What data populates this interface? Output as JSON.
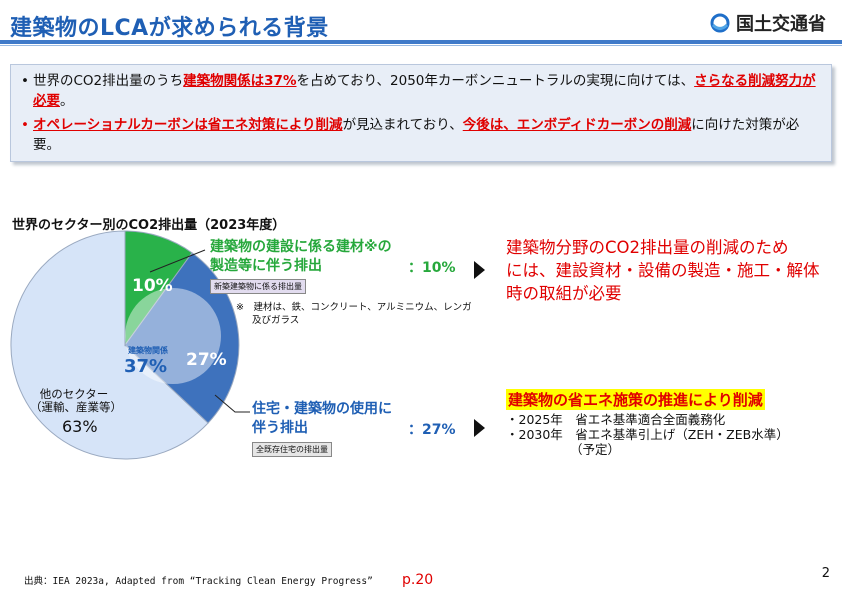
{
  "header": {
    "title": "建築物のLCAが求められる背景",
    "ministry": "国土交通省"
  },
  "summary": {
    "bullet": "•",
    "line1": {
      "a": "世界のCO2排出量のうち",
      "b": "建築物関係は37%",
      "c": "を占めており、2050年カーボンニュートラルの実現に向けては、",
      "d": "さらなる削減努力が必要",
      "e": "。"
    },
    "line2": {
      "a": "オペレーショナルカーボンは省エネ対策により削減",
      "b": "が見込まれており、",
      "c": "今後は、エンボディドカーボンの削減",
      "d": "に向けた対策が必要。"
    }
  },
  "chart_data": {
    "type": "pie",
    "title": "世界のセクター別のCO2排出量（2023年度）",
    "slices": [
      {
        "name": "建築物の建設に係る建材※の製造等に伴う排出",
        "value": 10,
        "label": "10%",
        "color": "#29b24a"
      },
      {
        "name": "住宅・建築物の使用に伴う排出",
        "value": 27,
        "label": "27%",
        "color": "#3e72bd"
      },
      {
        "name": "他のセクター（運輸、産業等）",
        "value": 63,
        "label": "63%",
        "color": "#d6e4f8"
      }
    ],
    "inner_label": {
      "text": "建築物関係",
      "value": "37%"
    }
  },
  "callouts": {
    "materials": {
      "line1": "建築物の建設に係る建材※の",
      "line2": "製造等に伴う排出",
      "value": "：10%",
      "tag": "新築建築物に係る排出量",
      "note1": "※　建材は、鉄、コンクリート、アルミニウム、レンガ",
      "note2": "及びガラス"
    },
    "usage": {
      "line1": "住宅・建築物の使用に",
      "line2": "伴う排出",
      "value": "：27%",
      "tag": "全既存住宅の排出量"
    },
    "other": {
      "line1": "他のセクター",
      "line2": "（運輸、産業等）",
      "value": "63%"
    }
  },
  "results": {
    "embodied": {
      "line1": "建築物分野のCO2排出量の削減のため",
      "line2": "には、建設資材・設備の製造・施工・解体",
      "line3": "時の取組が必要"
    },
    "operational": {
      "headline": "建築物の省エネ施策の推進により削減",
      "item1": "・2025年　省エネ基準適合全面義務化",
      "item2": "・2030年　省エネ基準引上げ（ZEH・ZEB水準）",
      "item3": "（予定）"
    }
  },
  "footer": {
    "source": "出典：IEA 2023a, Adapted from “Tracking Clean Energy Progress”",
    "page_ref": "p.20",
    "page_number": "2"
  }
}
